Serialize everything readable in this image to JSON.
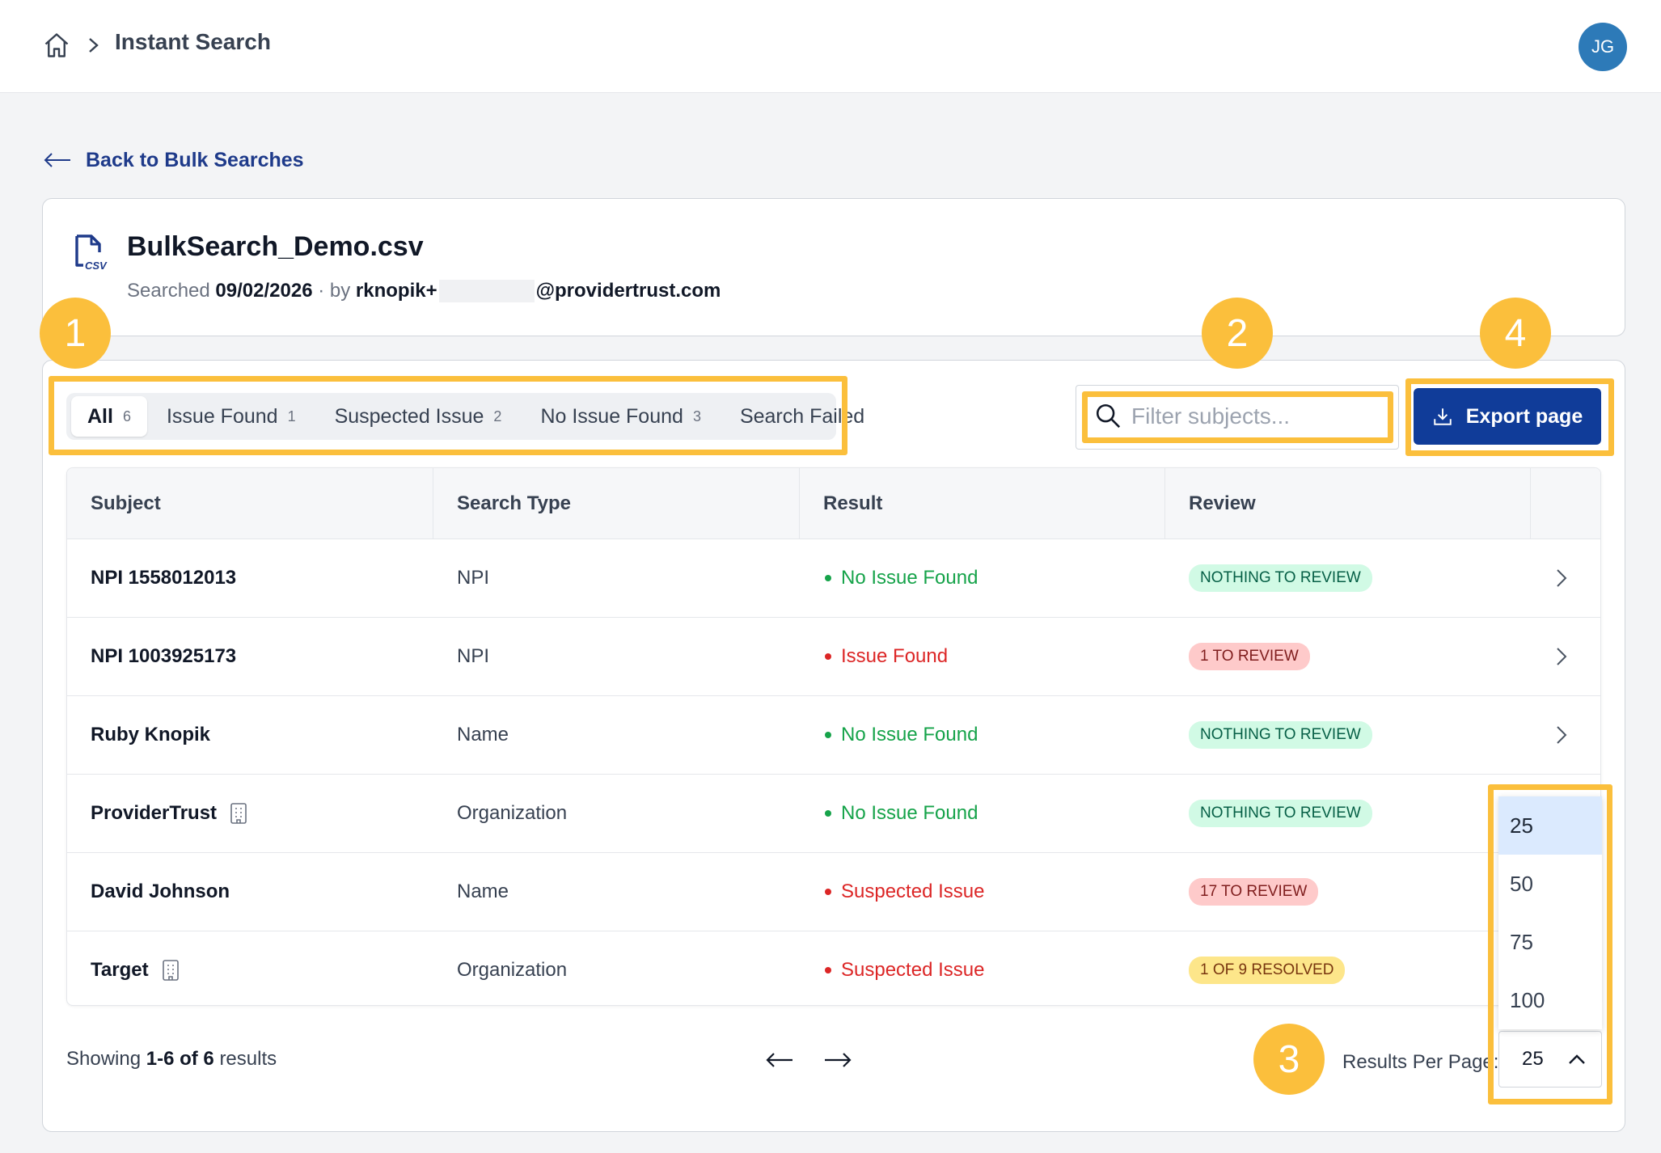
{
  "header": {
    "breadcrumb_title": "Instant Search",
    "avatar_initials": "JG"
  },
  "back_link": "Back to Bulk Searches",
  "file": {
    "name": "BulkSearch_Demo.csv",
    "icon_label": "CSV",
    "searched_label": "Searched",
    "date": "09/02/2026",
    "by_label": "· by",
    "user_prefix": "rknopik+",
    "user_domain": "@providertrust.com"
  },
  "tabs": [
    {
      "label": "All",
      "count": "6"
    },
    {
      "label": "Issue Found",
      "count": "1"
    },
    {
      "label": "Suspected Issue",
      "count": "2"
    },
    {
      "label": "No Issue Found",
      "count": "3"
    },
    {
      "label": "Search Failed",
      "count": ""
    }
  ],
  "search": {
    "placeholder": "Filter subjects...",
    "value": ""
  },
  "export_label": "Export page",
  "table": {
    "columns": [
      "Subject",
      "Search Type",
      "Result",
      "Review"
    ],
    "rows": [
      {
        "subject": "NPI 1558012013",
        "type": "NPI",
        "result": "No Issue Found",
        "review": "NOTHING TO REVIEW"
      },
      {
        "subject": "NPI 1003925173",
        "type": "NPI",
        "result": "Issue Found",
        "review": "1 TO REVIEW"
      },
      {
        "subject": "Ruby Knopik",
        "type": "Name",
        "result": "No Issue Found",
        "review": "NOTHING TO REVIEW"
      },
      {
        "subject": "ProviderTrust",
        "type": "Organization",
        "result": "No Issue Found",
        "review": "NOTHING TO REVIEW"
      },
      {
        "subject": "David Johnson",
        "type": "Name",
        "result": "Suspected Issue",
        "review": "17 TO REVIEW"
      },
      {
        "subject": "Target",
        "type": "Organization",
        "result": "Suspected Issue",
        "review": "1 OF 9 RESOLVED"
      }
    ]
  },
  "footer": {
    "showing_prefix": "Showing",
    "showing_range": "1-6 of 6",
    "showing_suffix": "results",
    "rpp_label": "Results Per Page:",
    "rpp_value": "25",
    "rpp_options": [
      "25",
      "50",
      "75",
      "100"
    ]
  },
  "callouts": [
    "1",
    "2",
    "3",
    "4"
  ],
  "colors": {
    "accent": "#103c99",
    "callout": "#fbbf3c",
    "green": "#16a34a",
    "red": "#dc2626",
    "pill_green_bg": "#d1fae5",
    "pill_red_bg": "#fecaca",
    "pill_amber_bg": "#fde68a"
  }
}
